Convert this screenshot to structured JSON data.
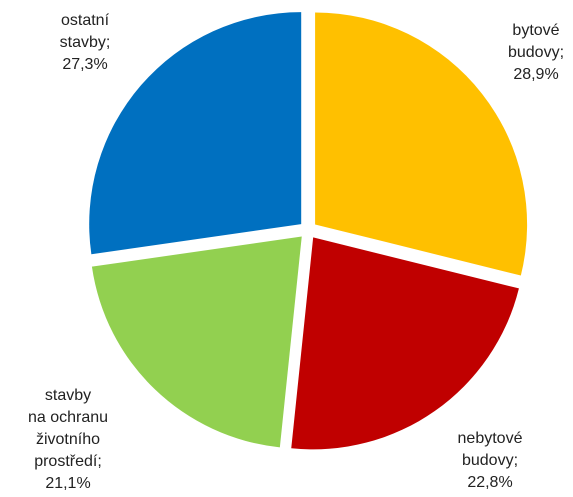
{
  "chart_data": {
    "type": "pie",
    "slices": [
      {
        "label_lines": [
          "bytové",
          "budovy;",
          "28,9%"
        ],
        "value": 28.9,
        "color": "#FFC000"
      },
      {
        "label_lines": [
          "nebytové",
          "budovy;",
          "22,8%"
        ],
        "value": 22.8,
        "color": "#C00000"
      },
      {
        "label_lines": [
          "stavby",
          "na ochranu",
          "životního",
          "prostředí;",
          "21,1%"
        ],
        "value": 21.1,
        "color": "#92D050"
      },
      {
        "label_lines": [
          "ostatní",
          "stavby;",
          "27,3%"
        ],
        "value": 27.3,
        "color": "#0070C0"
      }
    ]
  }
}
